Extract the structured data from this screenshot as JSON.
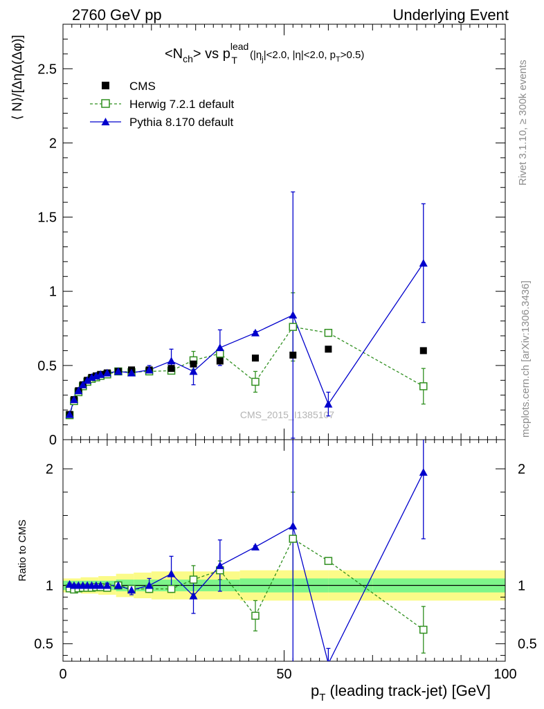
{
  "header": {
    "left": "2760 GeV pp",
    "right": "Underlying Event"
  },
  "side_labels": {
    "rivet": "Rivet 3.1.10, ≥ 300k events",
    "mcplots": "mcplots.cern.ch [arXiv:1306.3436]"
  },
  "watermark": "CMS_2015_I1385107",
  "colors": {
    "cms": "#000000",
    "herwig": "#2f8f1f",
    "pythia": "#0000cc",
    "band_inner": "#7ef58a",
    "band_outer": "#fbfb88"
  },
  "chart_data": [
    {
      "type": "scatter",
      "panel": "main",
      "title": "<Nch> vs pT lead (|ηj|<2.0, |η|<2.0, pT>0.5)",
      "title_parts": {
        "a": "<N",
        "a_sub": "ch",
        "b": "> vs p",
        "b_sup": "lead",
        "b_sub": "T",
        "c": " (|η",
        "c_sub": "j",
        "d": "|<2.0, |η|<2.0, p",
        "d_sub": "T",
        "e": ">0.5)"
      },
      "ylabel": "⟨ N⟩/[ΔηΔ(Δφ)]",
      "xlim": [
        0,
        100
      ],
      "ylim": [
        0,
        2.8
      ],
      "yticks": [
        0,
        0.5,
        1,
        1.5,
        2,
        2.5
      ],
      "ytick_labels": [
        "0",
        "0.5",
        "1",
        "1.5",
        "2",
        "2.5"
      ],
      "legend_position": "top-left",
      "series": [
        {
          "name": "CMS",
          "marker": "filled-square",
          "x": [
            1.5,
            2.5,
            3.5,
            4.5,
            5.5,
            6.5,
            7.5,
            8.5,
            10,
            12.5,
            15.5,
            19.5,
            24.5,
            29.5,
            35.5,
            43.5,
            52,
            60,
            81.5
          ],
          "y": [
            0.17,
            0.27,
            0.33,
            0.37,
            0.4,
            0.42,
            0.43,
            0.44,
            0.45,
            0.46,
            0.47,
            0.47,
            0.48,
            0.51,
            0.53,
            0.55,
            0.57,
            0.61,
            0.6
          ]
        },
        {
          "name": "Herwig 7.2.1 default",
          "marker": "open-square",
          "line": "dashed",
          "x": [
            1.5,
            2.5,
            3.5,
            4.5,
            5.5,
            6.5,
            7.5,
            8.5,
            10,
            12.5,
            15.5,
            19.5,
            24.5,
            29.5,
            35.5,
            43.5,
            52,
            60,
            81.5
          ],
          "y": [
            0.165,
            0.26,
            0.32,
            0.36,
            0.39,
            0.41,
            0.42,
            0.43,
            0.44,
            0.46,
            0.455,
            0.46,
            0.465,
            0.535,
            0.58,
            0.39,
            0.76,
            0.72,
            0.36
          ],
          "yerr": [
            0.005,
            0.005,
            0.005,
            0.005,
            0.005,
            0.005,
            0.005,
            0.005,
            0.005,
            0.01,
            0.01,
            0.01,
            0.015,
            0.06,
            0.04,
            0.07,
            0.23,
            0.01,
            0.12
          ]
        },
        {
          "name": "Pythia 8.170 default",
          "marker": "filled-triangle",
          "line": "solid",
          "x": [
            1.5,
            2.5,
            3.5,
            4.5,
            5.5,
            6.5,
            7.5,
            8.5,
            10,
            12.5,
            15.5,
            19.5,
            24.5,
            29.5,
            35.5,
            43.5,
            52,
            60,
            81.5
          ],
          "y": [
            0.17,
            0.27,
            0.33,
            0.37,
            0.4,
            0.42,
            0.43,
            0.44,
            0.45,
            0.46,
            0.45,
            0.47,
            0.53,
            0.46,
            0.62,
            0.72,
            0.84,
            0.24,
            1.19
          ],
          "yerr": [
            0.005,
            0.005,
            0.005,
            0.005,
            0.005,
            0.005,
            0.005,
            0.005,
            0.01,
            0.01,
            0.02,
            0.03,
            0.08,
            0.09,
            0.12,
            0.01,
            0.83,
            0.08,
            0.4
          ]
        }
      ]
    },
    {
      "type": "scatter",
      "panel": "ratio",
      "ylabel": "Ratio to CMS",
      "xlabel": "pT (leading track-jet) [GeV]",
      "xlabel_parts": {
        "a": "p",
        "a_sub": "T",
        "b": " (leading track-jet) [GeV]"
      },
      "xlim": [
        0,
        100
      ],
      "ylim": [
        0.35,
        2.25
      ],
      "xticks": [
        0,
        50,
        100
      ],
      "xtick_labels": [
        "0",
        "50",
        "100"
      ],
      "yticks": [
        0.5,
        1,
        2
      ],
      "ytick_labels": [
        "0.5",
        "1",
        "2"
      ],
      "band": {
        "x": [
          0,
          4,
          8,
          12,
          16,
          20,
          25,
          30,
          40,
          52,
          60,
          70,
          100
        ],
        "inner": [
          0.04,
          0.04,
          0.04,
          0.05,
          0.05,
          0.05,
          0.05,
          0.05,
          0.06,
          0.06,
          0.06,
          0.06,
          0.06
        ],
        "outer": [
          0.06,
          0.07,
          0.08,
          0.1,
          0.11,
          0.12,
          0.12,
          0.12,
          0.13,
          0.13,
          0.13,
          0.13,
          0.13
        ]
      },
      "series": [
        {
          "name": "Herwig 7.2.1 default",
          "x": [
            1.5,
            2.5,
            3.5,
            4.5,
            5.5,
            6.5,
            7.5,
            8.5,
            10,
            12.5,
            15.5,
            19.5,
            24.5,
            29.5,
            35.5,
            43.5,
            52,
            60,
            81.5
          ],
          "y": [
            0.975,
            0.965,
            0.975,
            0.98,
            0.98,
            0.98,
            0.985,
            0.985,
            0.98,
            1.0,
            0.97,
            0.97,
            0.97,
            1.05,
            1.13,
            0.74,
            1.4,
            1.21,
            0.62
          ],
          "yerr": [
            0.01,
            0.01,
            0.01,
            0.01,
            0.01,
            0.01,
            0.01,
            0.01,
            0.01,
            0.02,
            0.02,
            0.02,
            0.03,
            0.12,
            0.08,
            0.13,
            0.4,
            0.02,
            0.2
          ]
        },
        {
          "name": "Pythia 8.170 default",
          "x": [
            1.5,
            2.5,
            3.5,
            4.5,
            5.5,
            6.5,
            7.5,
            8.5,
            10,
            12.5,
            15.5,
            19.5,
            24.5,
            29.5,
            35.5,
            43.5,
            52,
            60,
            81.5
          ],
          "y": [
            1.01,
            1.0,
            1.0,
            1.0,
            1.0,
            1.0,
            1.0,
            1.0,
            1.0,
            1.0,
            0.96,
            1.0,
            1.1,
            0.91,
            1.17,
            1.33,
            1.51,
            0.33,
            1.97
          ],
          "yerr": [
            0.01,
            0.01,
            0.01,
            0.01,
            0.01,
            0.01,
            0.01,
            0.01,
            0.02,
            0.03,
            0.04,
            0.06,
            0.15,
            0.15,
            0.22,
            0.01,
            1.45,
            0.13,
            0.57
          ]
        }
      ]
    }
  ]
}
